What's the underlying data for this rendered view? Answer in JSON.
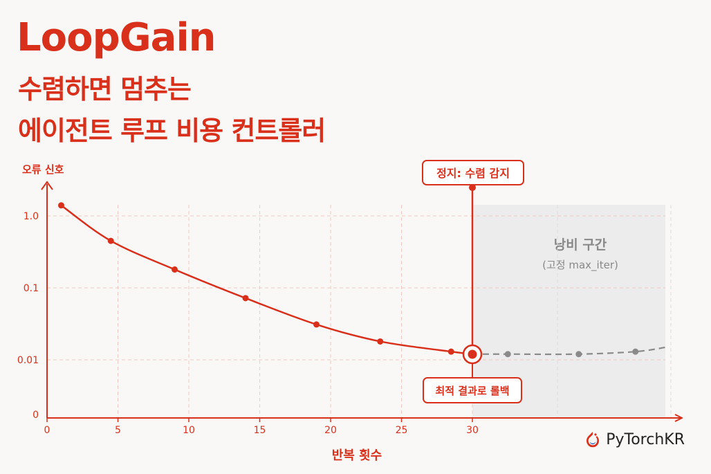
{
  "header": {
    "title": "LoopGain",
    "subtitle_line1": "수렴하면 멈추는",
    "subtitle_line2": "에이전트 루프 비용 컨트롤러"
  },
  "brand": {
    "name": "PyTorchKR",
    "icon": "pytorch-flame-icon"
  },
  "colors": {
    "accent": "#d9301c",
    "waste_fill": "#ececec",
    "waste_line": "#8a8a8a"
  },
  "chart_data": {
    "type": "line",
    "xlabel": "반복 횟수",
    "ylabel": "오류 신호",
    "xticks": [
      0,
      5,
      10,
      15,
      20,
      25,
      30
    ],
    "yticks": [
      "0",
      "0.01",
      "0.1",
      "1.0"
    ],
    "yscale": "log",
    "grid": true,
    "series": [
      {
        "role": "convergence",
        "x": [
          1,
          4.5,
          9,
          14,
          19,
          23.5,
          28.5
        ],
        "y": [
          1.4,
          0.45,
          0.18,
          0.072,
          0.031,
          0.018,
          0.013
        ]
      },
      {
        "role": "fixed-iteration",
        "x": [
          32.5,
          37.5,
          41.5
        ],
        "y": [
          0.012,
          0.012,
          0.013
        ]
      }
    ],
    "stop_point": {
      "x": 30,
      "y": 0.012
    },
    "annotations": {
      "stop": "정지: 수렴 감지",
      "rollback": "최적 결과로 롤백",
      "waste_title": "낭비 구간",
      "waste_subtitle": "(고정 max_iter)"
    }
  }
}
